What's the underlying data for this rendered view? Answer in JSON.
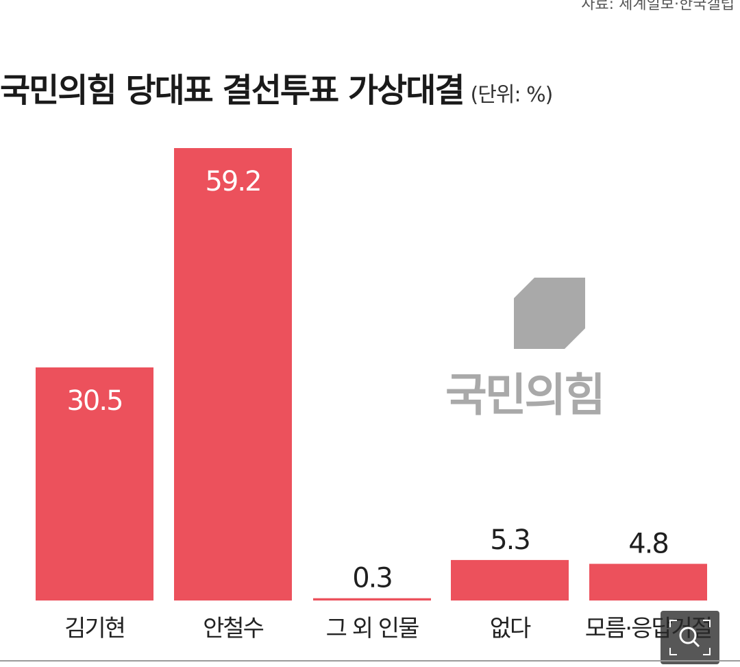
{
  "source": "자료: 세계일보·한국갤럽",
  "chart_data": {
    "type": "bar",
    "title": "국민의힘 당대표 결선투표 가상대결",
    "unit_label": "(단위: %)",
    "categories": [
      "김기현",
      "안철수",
      "그 외 인물",
      "없다",
      "모름·응답거절"
    ],
    "values": [
      30.5,
      59.2,
      0.3,
      5.3,
      4.8
    ],
    "value_labels": [
      "30.5",
      "59.2",
      "0.3",
      "5.3",
      "4.8"
    ],
    "ylim": [
      0,
      59.2
    ],
    "grid": false,
    "legend": "none",
    "bar_color": "#ec515c",
    "value_label_color_inside": "#ffffff",
    "value_label_color_outside": "#1f1f1f"
  },
  "logo": {
    "text": "국민의힘",
    "mark_color": "#a9a9a9",
    "icon": "party-logo-mark"
  },
  "controls": {
    "zoom_icon": "zoom-magnifier-icon"
  }
}
